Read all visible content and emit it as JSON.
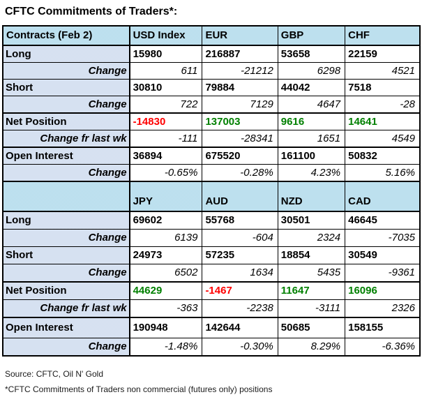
{
  "title": "CFTC Commitments of Traders*:",
  "colors": {
    "negative": "#ff0000",
    "positive": "#008000",
    "header_bg": "#a4d4e8",
    "label_bg": "#c9d7ec",
    "border": "#000000"
  },
  "tables": [
    {
      "header": [
        "Contracts (Feb 2)",
        "USD Index",
        "EUR",
        "GBP",
        "CHF"
      ],
      "rows": [
        {
          "label": "Long",
          "type": "value",
          "values": [
            "15980",
            "216887",
            "53658",
            "22159"
          ]
        },
        {
          "label": "Change",
          "type": "change",
          "values": [
            "611",
            "-21212",
            "6298",
            "4521"
          ]
        },
        {
          "label": "Short",
          "type": "value",
          "values": [
            "30810",
            "79884",
            "44042",
            "7518"
          ]
        },
        {
          "label": "Change",
          "type": "change",
          "values": [
            "722",
            "7129",
            "4647",
            "-28"
          ]
        },
        {
          "label": "Net Position",
          "type": "net",
          "values": [
            "-14830",
            "137003",
            "9616",
            "14641"
          ],
          "value_colors": [
            "red",
            "green",
            "green",
            "green"
          ]
        },
        {
          "label": "Change fr last wk",
          "type": "change",
          "values": [
            "-111",
            "-28341",
            "1651",
            "4549"
          ]
        },
        {
          "label": "Open Interest",
          "type": "value",
          "values": [
            "36894",
            "675520",
            "161100",
            "50832"
          ]
        },
        {
          "label": "Change",
          "type": "change",
          "values": [
            "-0.65%",
            "-0.28%",
            "4.23%",
            "5.16%"
          ]
        }
      ]
    },
    {
      "header": [
        "",
        "JPY",
        "AUD",
        "NZD",
        "CAD"
      ],
      "rows": [
        {
          "label": "Long",
          "type": "value",
          "values": [
            "69602",
            "55768",
            "30501",
            "46645"
          ]
        },
        {
          "label": "Change",
          "type": "change",
          "values": [
            "6139",
            "-604",
            "2324",
            "-7035"
          ]
        },
        {
          "label": "Short",
          "type": "value",
          "values": [
            "24973",
            "57235",
            "18854",
            "30549"
          ]
        },
        {
          "label": "Change",
          "type": "change",
          "values": [
            "6502",
            "1634",
            "5435",
            "-9361"
          ]
        },
        {
          "label": "Net Position",
          "type": "net",
          "values": [
            "44629",
            "-1467",
            "11647",
            "16096"
          ],
          "value_colors": [
            "green",
            "red",
            "green",
            "green"
          ]
        },
        {
          "label": "Change fr last wk",
          "type": "change",
          "values": [
            "-363",
            "-2238",
            "-3111",
            "2326"
          ]
        },
        {
          "label": "Open Interest",
          "type": "value",
          "values": [
            "190948",
            "142644",
            "50685",
            "158155"
          ]
        },
        {
          "label": "Change",
          "type": "change",
          "values": [
            "-1.48%",
            "-0.30%",
            "8.29%",
            "-6.36%"
          ]
        }
      ]
    }
  ],
  "footer": {
    "source": "Source: CFTC, Oil N' Gold",
    "note": "*CFTC Commitments of Traders non commercial (futures only) positions"
  }
}
